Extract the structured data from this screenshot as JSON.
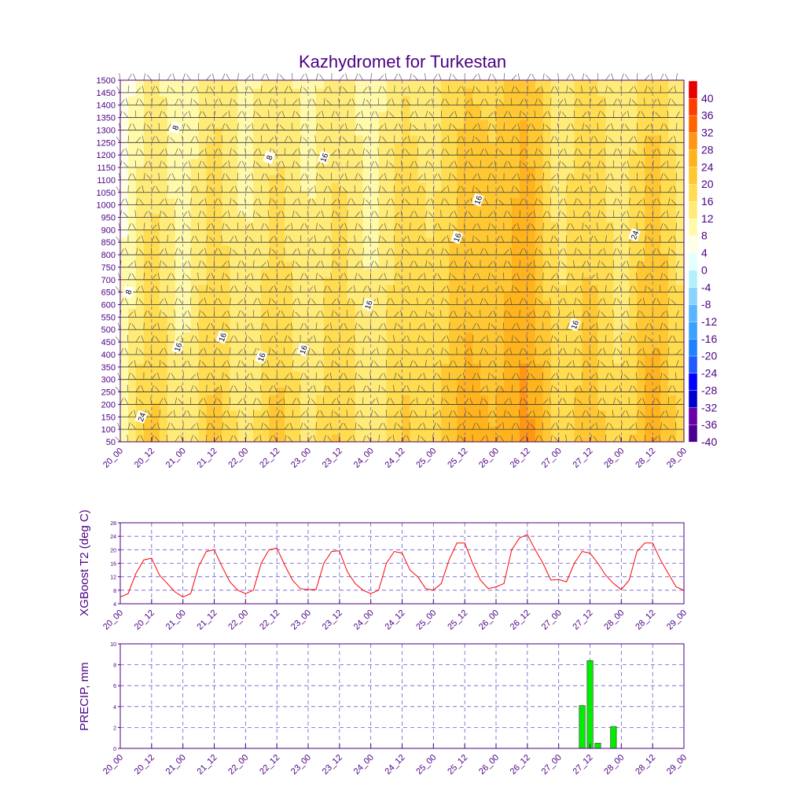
{
  "title": "Kazhydromet for Turkestan",
  "time_labels": [
    "20_00",
    "20_12",
    "21_00",
    "21_12",
    "22_00",
    "22_12",
    "23_00",
    "23_12",
    "24_00",
    "24_12",
    "25_00",
    "25_12",
    "26_00",
    "26_12",
    "27_00",
    "27_12",
    "28_00",
    "28_12",
    "29_00"
  ],
  "colors": {
    "axis": "#4b0082",
    "t2_line": "#ff0000",
    "precip_bar": "#00ee00",
    "grid": "#6a5acd"
  },
  "chart_data": [
    {
      "type": "heatmap",
      "title": "Kazhydromet for Turkestan",
      "ylabel": "",
      "y_ticks": [
        50,
        100,
        150,
        200,
        250,
        300,
        350,
        400,
        450,
        500,
        550,
        600,
        650,
        700,
        750,
        800,
        850,
        900,
        950,
        1000,
        1050,
        1100,
        1150,
        1200,
        1250,
        1300,
        1350,
        1400,
        1450,
        1500
      ],
      "x_ticks": [
        "20_00",
        "20_12",
        "21_00",
        "21_12",
        "22_00",
        "22_12",
        "23_00",
        "23_12",
        "24_00",
        "24_12",
        "25_00",
        "25_12",
        "26_00",
        "26_12",
        "27_00",
        "27_12",
        "28_00",
        "28_12",
        "29_00"
      ],
      "colorbar": {
        "levels": [
          -40,
          -36,
          -32,
          -28,
          -24,
          -20,
          -16,
          -12,
          -8,
          -4,
          0,
          4,
          8,
          12,
          16,
          20,
          24,
          28,
          32,
          36,
          40
        ],
        "labels": [
          "40",
          "36",
          "32",
          "28",
          "24",
          "20",
          "16",
          "12",
          "8",
          "4",
          "0",
          "-4",
          "-8",
          "-12",
          "-16",
          "-20",
          "-24",
          "-28",
          "-32",
          "-36",
          "-40"
        ],
        "colors": [
          "#4b0091",
          "#6a00a8",
          "#0000cd",
          "#0000ff",
          "#1e5aff",
          "#1e82ff",
          "#3ca0ff",
          "#5ab4ff",
          "#8cd2ff",
          "#b4f0fa",
          "#e6ffff",
          "#ffffe6",
          "#fffaaa",
          "#ffeb78",
          "#ffdc50",
          "#ffc832",
          "#ffb41e",
          "#ff9614",
          "#ff6400",
          "#ff3c00",
          "#e60000"
        ]
      },
      "contour_labels": [
        "8",
        "8",
        "8",
        "16",
        "16",
        "16",
        "16",
        "16",
        "16",
        "16",
        "16",
        "16",
        "24",
        "24"
      ],
      "temperature_profile_c": [
        4,
        14,
        8,
        16,
        10,
        15,
        10,
        15,
        9,
        16,
        14,
        20,
        19,
        24,
        13,
        18,
        12,
        20,
        12
      ],
      "surface_peak_c": [
        6,
        18,
        8,
        18,
        9,
        18,
        10,
        17,
        9,
        17,
        14,
        22,
        20,
        26,
        13,
        19,
        12,
        23,
        13
      ]
    },
    {
      "type": "line",
      "ylabel": "XGBoost T2 (deg C)",
      "ylim": [
        4,
        28
      ],
      "y_ticks": [
        4,
        8,
        12,
        16,
        20,
        24,
        28
      ],
      "x_ticks": [
        "20_00",
        "20_12",
        "21_00",
        "21_12",
        "22_00",
        "22_12",
        "23_00",
        "23_12",
        "24_00",
        "24_12",
        "25_00",
        "25_12",
        "26_00",
        "26_12",
        "27_00",
        "27_12",
        "28_00",
        "28_12",
        "29_00"
      ],
      "x_hours": [
        0,
        3,
        6,
        9,
        12,
        15,
        18,
        21,
        24,
        27,
        30,
        33,
        36,
        39,
        42,
        45,
        48,
        51,
        54,
        57,
        60,
        63,
        66,
        69,
        72,
        75,
        78,
        81,
        84,
        87,
        90,
        93,
        96,
        99,
        102,
        105,
        108,
        111,
        114,
        117,
        120,
        123,
        126,
        129,
        132,
        135,
        138,
        141,
        144,
        147,
        150,
        153,
        156,
        159,
        162,
        165,
        168,
        171,
        174,
        177,
        180,
        183,
        186,
        189,
        192,
        195,
        198,
        201,
        204,
        207,
        210,
        213,
        216
      ],
      "values": [
        6,
        7,
        13,
        17,
        17.5,
        12.5,
        10,
        7.5,
        6,
        7,
        15,
        19.5,
        20,
        15,
        10.5,
        8,
        7,
        8,
        16,
        20,
        20.5,
        15.5,
        11,
        8.5,
        8.2,
        8.2,
        16,
        19.5,
        19.7,
        13.5,
        10,
        8,
        7,
        8,
        16,
        19.5,
        19,
        14,
        12,
        8.5,
        8,
        10,
        17,
        22,
        22,
        16,
        11,
        8.5,
        9,
        10,
        20,
        23.5,
        24.5,
        20,
        16,
        11,
        11.2,
        10.5,
        16,
        19.5,
        19,
        16,
        12.5,
        10,
        8.2,
        11,
        19.5,
        22,
        22,
        17,
        13,
        9,
        8
      ]
    },
    {
      "type": "bar",
      "ylabel": "PRECIP, mm",
      "ylim": [
        0,
        10
      ],
      "y_ticks": [
        0,
        2,
        4,
        6,
        8,
        10
      ],
      "x_ticks": [
        "20_00",
        "20_12",
        "21_00",
        "21_12",
        "22_00",
        "22_12",
        "23_00",
        "23_12",
        "24_00",
        "24_12",
        "25_00",
        "25_12",
        "26_00",
        "26_12",
        "27_00",
        "27_12",
        "28_00",
        "28_12",
        "29_00"
      ],
      "x_hours": [
        177,
        180,
        183,
        189
      ],
      "values": [
        4.1,
        8.4,
        0.5,
        2.1
      ]
    }
  ]
}
